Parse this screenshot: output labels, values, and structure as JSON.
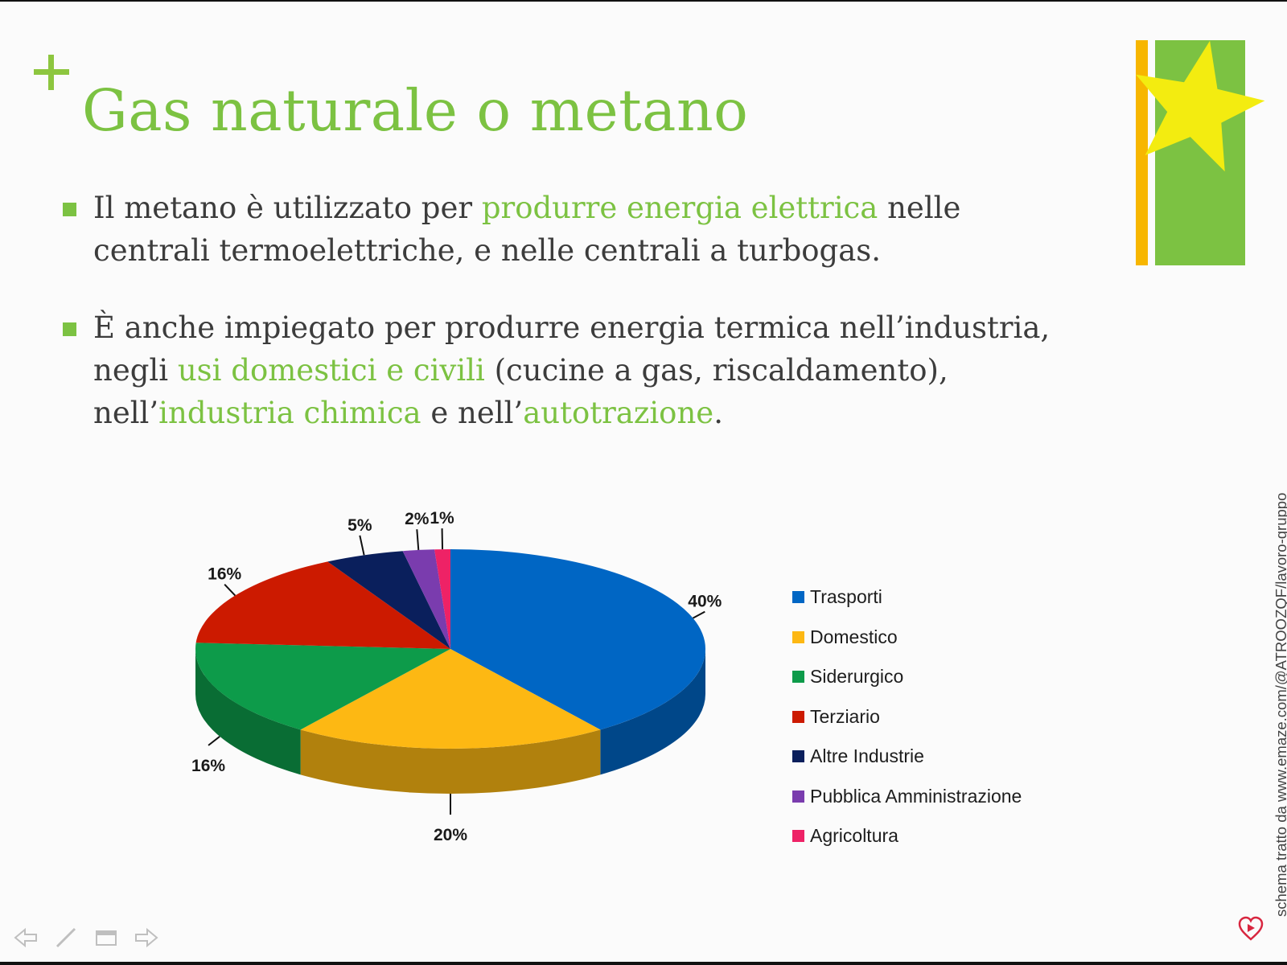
{
  "slide": {
    "title": "Gas naturale o metano",
    "bullets": [
      {
        "segments": [
          {
            "text": "Il metano è utilizzato per ",
            "highlight": false
          },
          {
            "text": "produrre energia elettrica",
            "highlight": true
          },
          {
            "text": " nelle centrali termoelettriche, e nelle centrali a turbogas.",
            "highlight": false
          }
        ]
      },
      {
        "segments": [
          {
            "text": "È anche impiegato per produrre energia termica nell’industria, negli ",
            "highlight": false
          },
          {
            "text": "usi domestici e civili",
            "highlight": true
          },
          {
            "text": " (cucine a gas, riscaldamento), nell’",
            "highlight": false
          },
          {
            "text": "industria chimica",
            "highlight": true
          },
          {
            "text": " e nell’",
            "highlight": false
          },
          {
            "text": "autotrazione",
            "highlight": true
          },
          {
            "text": ".",
            "highlight": false
          }
        ]
      }
    ],
    "credit": "schema tratto da www.emaze.com/@ATROOZQF/lavoro-gruppo"
  },
  "colors": {
    "accent_green": "#7cc242",
    "accent_orange": "#f7b600",
    "star_yellow": "#f3ec10",
    "body_text": "#3c3c3c"
  },
  "nav": {
    "icons": [
      "back-arrow-icon",
      "pen-icon",
      "slides-menu-icon",
      "forward-arrow-icon"
    ]
  },
  "chart_data": {
    "type": "pie",
    "title": "",
    "legend_position": "right",
    "categories": [
      "Trasporti",
      "Domestico",
      "Siderurgico",
      "Terziario",
      "Altre Industrie",
      "Pubblica Amministrazione",
      "Agricoltura"
    ],
    "values": [
      40,
      20,
      16,
      16,
      5,
      2,
      1
    ],
    "labels": [
      "40%",
      "20%",
      "16%",
      "16%",
      "5%",
      "2%",
      "1%"
    ],
    "colors": [
      "#0066c4",
      "#fdb813",
      "#0d9b4a",
      "#cc1a00",
      "#0a1f5c",
      "#7a3cae",
      "#ee2266"
    ]
  }
}
